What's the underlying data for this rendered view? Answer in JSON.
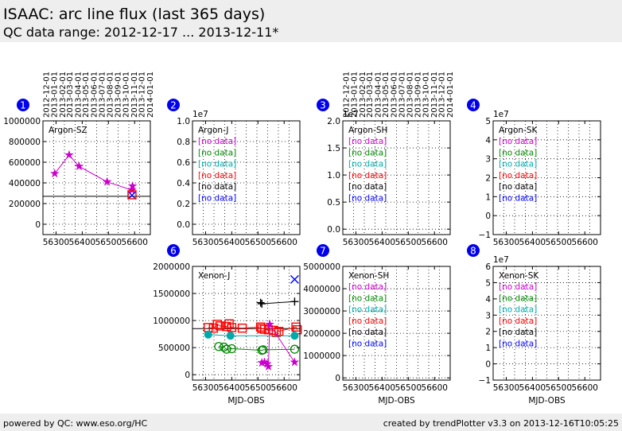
{
  "header": {
    "title": "ISAAC: arc line flux (last 365 days)",
    "subtitle": "QC data range: 2012-12-17 ... 2013-12-11*"
  },
  "footer": {
    "left": "powered by QC: www.eso.org/HC",
    "right": "created by trendPlotter v3.3 on 2013-12-16T10:05:25"
  },
  "colors": {
    "magenta": "#cc00cc",
    "green": "#008800",
    "cyan": "#00aaaa",
    "red": "#ff0000",
    "black": "#000000",
    "blue": "#0000ff",
    "badge": "#0000ee"
  },
  "chart_data": [
    {
      "type": "scatter",
      "panel": "1",
      "title": "Argon-SZ",
      "xlabel": "",
      "xlim": [
        56250,
        56660
      ],
      "ylim": [
        -100000,
        1000000
      ],
      "xticks": [
        56300,
        56400,
        56500,
        56600
      ],
      "yticks": [
        0,
        200000,
        400000,
        600000,
        800000,
        1000000
      ],
      "ytick_labels": [
        "0",
        "200000",
        "400000",
        "600000",
        "800000",
        "1000000"
      ],
      "exponent": "",
      "top_date_ticks": [
        "2012-12-01",
        "2013-01-01",
        "2013-02-01",
        "2013-03-01",
        "2013-04-01",
        "2013-05-01",
        "2013-06-01",
        "2013-07-01",
        "2013-08-01",
        "2013-09-01",
        "2013-10-01",
        "2013-11-01",
        "2013-12-01",
        "2014-01-01"
      ],
      "top_date_mjd": [
        56262,
        56293,
        56324,
        56352,
        56383,
        56413,
        56444,
        56474,
        56505,
        56536,
        56566,
        56597,
        56627,
        56658
      ],
      "reference_line": 270000,
      "series": [
        {
          "color": "magenta",
          "marker": "star",
          "x": [
            56295,
            56350,
            56388,
            56495,
            56590,
            56592
          ],
          "y": [
            490000,
            670000,
            560000,
            410000,
            330000,
            370000
          ]
        },
        {
          "color": "blue",
          "marker": "x",
          "x": [
            56590
          ],
          "y": [
            280000
          ]
        },
        {
          "color": "red",
          "marker": "square",
          "x": [
            56590
          ],
          "y": [
            285000
          ]
        }
      ],
      "legend": []
    },
    {
      "type": "scatter",
      "panel": "2",
      "title": "Argon-J",
      "xlabel": "",
      "xlim": [
        56250,
        56660
      ],
      "ylim": [
        -0.1,
        1.0
      ],
      "xticks": [
        56300,
        56400,
        56500,
        56600
      ],
      "yticks": [
        0,
        0.2,
        0.4,
        0.6,
        0.8,
        1.0
      ],
      "ytick_labels": [
        "0.0",
        "0.2",
        "0.4",
        "0.6",
        "0.8",
        "1.0"
      ],
      "exponent": "1e7",
      "series": [],
      "legend": [
        {
          "text": "[no data]",
          "color": "magenta"
        },
        {
          "text": "[no data]",
          "color": "green"
        },
        {
          "text": "[no data]",
          "color": "cyan"
        },
        {
          "text": "[no data]",
          "color": "red"
        },
        {
          "text": "[no data]",
          "color": "black"
        },
        {
          "text": "[no data]",
          "color": "blue"
        }
      ]
    },
    {
      "type": "scatter",
      "panel": "3",
      "title": "Argon-SH",
      "xlabel": "",
      "xlim": [
        56250,
        56660
      ],
      "ylim": [
        -0.1,
        2.0
      ],
      "xticks": [
        56300,
        56400,
        56500,
        56600
      ],
      "yticks": [
        0,
        0.5,
        1.0,
        1.5,
        2.0
      ],
      "ytick_labels": [
        "0.0",
        "0.5",
        "1.0",
        "1.5",
        "2.0"
      ],
      "exponent": "1e7",
      "top_date_ticks": [
        "2012-12-01",
        "2013-01-01",
        "2013-02-01",
        "2013-03-01",
        "2013-04-01",
        "2013-05-01",
        "2013-06-01",
        "2013-07-01",
        "2013-08-01",
        "2013-09-01",
        "2013-10-01",
        "2013-11-01",
        "2013-12-01",
        "2014-01-01"
      ],
      "top_date_mjd": [
        56262,
        56293,
        56324,
        56352,
        56383,
        56413,
        56444,
        56474,
        56505,
        56536,
        56566,
        56597,
        56627,
        56658
      ],
      "series": [],
      "legend": [
        {
          "text": "[no data]",
          "color": "magenta"
        },
        {
          "text": "[no data]",
          "color": "green"
        },
        {
          "text": "[no data]",
          "color": "cyan"
        },
        {
          "text": "[no data]",
          "color": "red"
        },
        {
          "text": "[no data]",
          "color": "black"
        },
        {
          "text": "[no data]",
          "color": "blue"
        }
      ]
    },
    {
      "type": "scatter",
      "panel": "4",
      "title": "Argon-SK",
      "xlabel": "",
      "xlim": [
        56250,
        56660
      ],
      "ylim": [
        -1,
        5
      ],
      "xticks": [
        56300,
        56400,
        56500,
        56600
      ],
      "yticks": [
        -1,
        0,
        1,
        2,
        3,
        4,
        5
      ],
      "ytick_labels": [
        "−1",
        "0",
        "1",
        "2",
        "3",
        "4",
        "5"
      ],
      "exponent": "1e7",
      "series": [],
      "legend": [
        {
          "text": "[no data]",
          "color": "magenta"
        },
        {
          "text": "[no data]",
          "color": "green"
        },
        {
          "text": "[no data]",
          "color": "cyan"
        },
        {
          "text": "[no data]",
          "color": "red"
        },
        {
          "text": "[no data]",
          "color": "black"
        },
        {
          "text": "[no data]",
          "color": "blue"
        }
      ]
    },
    {
      "type": "scatter",
      "panel": "6",
      "title": "Xenon-J",
      "xlabel": "MJD-OBS",
      "xlim": [
        56250,
        56660
      ],
      "ylim": [
        -100000,
        2000000
      ],
      "xticks": [
        56300,
        56400,
        56500,
        56600
      ],
      "yticks": [
        0,
        500000,
        1000000,
        1500000,
        2000000
      ],
      "ytick_labels": [
        "0",
        "500000",
        "1000000",
        "1500000",
        "2000000"
      ],
      "exponent": "",
      "reference_line": 850000,
      "series": [
        {
          "color": "red",
          "marker": "square",
          "x": [
            56310,
            56330,
            56345,
            56355,
            56380,
            56390,
            56400,
            56440,
            56510,
            56515,
            56525,
            56540,
            56560,
            56570,
            56580,
            56645,
            56650
          ],
          "y": [
            870000,
            860000,
            930000,
            900000,
            890000,
            940000,
            870000,
            860000,
            880000,
            850000,
            840000,
            830000,
            820000,
            780000,
            800000,
            880000,
            830000
          ]
        },
        {
          "color": "cyan",
          "marker": "circle_filled",
          "x": [
            56310,
            56395,
            56640
          ],
          "y": [
            740000,
            720000,
            720000
          ]
        },
        {
          "color": "green",
          "marker": "circle",
          "x": [
            56350,
            56370,
            56380,
            56400,
            56515,
            56520,
            56640
          ],
          "y": [
            520000,
            510000,
            470000,
            480000,
            450000,
            460000,
            470000
          ]
        },
        {
          "color": "black",
          "marker": "plus",
          "x": [
            56510,
            56515,
            56640
          ],
          "y": [
            1330000,
            1310000,
            1350000
          ]
        },
        {
          "color": "magenta",
          "marker": "star",
          "x": [
            56515,
            56525,
            56535,
            56540,
            56545,
            56640
          ],
          "y": [
            220000,
            230000,
            200000,
            150000,
            930000,
            230000
          ]
        },
        {
          "color": "blue",
          "marker": "x",
          "x": [
            56640
          ],
          "y": [
            1760000
          ]
        }
      ],
      "legend": []
    },
    {
      "type": "scatter",
      "panel": "7",
      "title": "Xenon-SH",
      "xlabel": "MJD-OBS",
      "xlim": [
        56250,
        56660
      ],
      "ylim": [
        -100000,
        5000000
      ],
      "xticks": [
        56300,
        56400,
        56500,
        56600
      ],
      "yticks": [
        0,
        1000000,
        2000000,
        3000000,
        4000000,
        5000000
      ],
      "ytick_labels": [
        "0",
        "1000000",
        "2000000",
        "3000000",
        "4000000",
        "5000000"
      ],
      "exponent": "",
      "series": [],
      "legend": [
        {
          "text": "[no data]",
          "color": "magenta"
        },
        {
          "text": "[no data]",
          "color": "green"
        },
        {
          "text": "[no data]",
          "color": "cyan"
        },
        {
          "text": "[no data]",
          "color": "red"
        },
        {
          "text": "[no data]",
          "color": "black"
        },
        {
          "text": "[no data]",
          "color": "blue"
        }
      ]
    },
    {
      "type": "scatter",
      "panel": "8",
      "title": "Xenon-SK",
      "xlabel": "MJD-OBS",
      "xlim": [
        56250,
        56660
      ],
      "ylim": [
        -1,
        6
      ],
      "xticks": [
        56300,
        56400,
        56500,
        56600
      ],
      "yticks": [
        -1,
        0,
        1,
        2,
        3,
        4,
        5,
        6
      ],
      "ytick_labels": [
        "−1",
        "0",
        "1",
        "2",
        "3",
        "4",
        "5",
        "6"
      ],
      "exponent": "1e7",
      "series": [],
      "legend": [
        {
          "text": "[no data]",
          "color": "magenta"
        },
        {
          "text": "[no data]",
          "color": "green"
        },
        {
          "text": "[no data]",
          "color": "cyan"
        },
        {
          "text": "[no data]",
          "color": "red"
        },
        {
          "text": "[no data]",
          "color": "black"
        },
        {
          "text": "[no data]",
          "color": "blue"
        }
      ]
    }
  ]
}
